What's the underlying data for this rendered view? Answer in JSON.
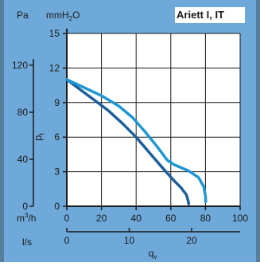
{
  "chart_data": {
    "type": "line",
    "title": "Ariett I, IT",
    "xlabel": "q",
    "xlabel_sub": "v",
    "ylabel": "p",
    "ylabel_sub": "t",
    "left_unit": "Pa",
    "mid_unit": "mmH",
    "mid_unit_sub": "2",
    "mid_unit_tail": "O",
    "x_unit_top": "m",
    "x_unit_top_sup": "3",
    "x_unit_top_tail": "/h",
    "x_unit_bottom": "l/s",
    "xlim": [
      0,
      100
    ],
    "ylim": [
      0,
      15
    ],
    "x_ticks": [
      0,
      20,
      40,
      60,
      80,
      100
    ],
    "y_ticks": [
      0,
      3,
      6,
      9,
      12,
      15
    ],
    "pa_ticks": [
      0,
      40,
      80,
      120
    ],
    "ls_ticks": [
      0,
      10,
      20
    ],
    "grid": true,
    "colors": {
      "background": "#6ea9d9",
      "plot_background": "#ffffff",
      "grid": "#1a1a1a",
      "series_dark": "#1d5f9a",
      "series_light": "#1f97d2"
    },
    "series": [
      {
        "color": "#1d5f9a",
        "x": [
          0,
          8,
          16,
          24,
          32,
          40,
          48,
          56,
          62,
          66,
          69,
          70,
          70.3
        ],
        "y": [
          11.0,
          10.1,
          9.2,
          8.3,
          7.2,
          6.0,
          4.6,
          3.2,
          2.2,
          1.6,
          1.0,
          0.5,
          0.2
        ]
      },
      {
        "color": "#1f97d2",
        "x": [
          0,
          10,
          20,
          30,
          38,
          45,
          52,
          58,
          62,
          70,
          76,
          79,
          80,
          80.2
        ],
        "y": [
          11.0,
          10.3,
          9.6,
          8.7,
          7.7,
          6.5,
          5.2,
          4.0,
          3.6,
          3.1,
          2.5,
          1.7,
          0.9,
          0.4
        ]
      }
    ]
  }
}
